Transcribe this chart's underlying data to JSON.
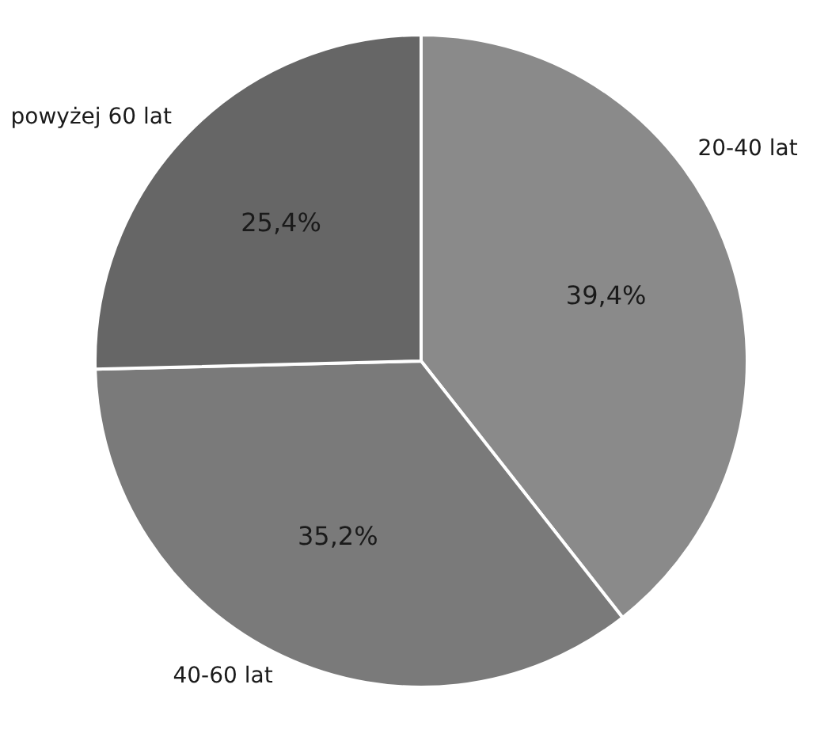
{
  "chart_data": {
    "type": "pie",
    "categories": [
      "20-40 lat",
      "40-60 lat",
      "powyżej 60 lat"
    ],
    "values": [
      39.4,
      35.2,
      25.4
    ],
    "colors": [
      "#8a8a8a",
      "#7a7a7a",
      "#666666"
    ],
    "value_labels": [
      "39,4%",
      "35,2%",
      "25,4%"
    ]
  }
}
